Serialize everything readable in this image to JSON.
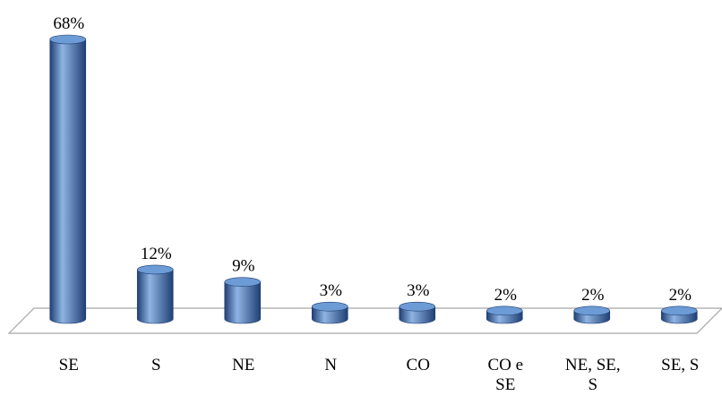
{
  "chart_data": {
    "type": "bar",
    "style": "3d-cylinder",
    "categories": [
      "SE",
      "S",
      "NE",
      "N",
      "CO",
      "CO e SE",
      "NE, SE, S",
      "SE, S"
    ],
    "category_lines": [
      [
        "SE"
      ],
      [
        "S"
      ],
      [
        "NE"
      ],
      [
        "N"
      ],
      [
        "CO"
      ],
      [
        "CO e",
        "SE"
      ],
      [
        "NE, SE,",
        "S"
      ],
      [
        "SE, S"
      ]
    ],
    "values": [
      68,
      12,
      9,
      3,
      3,
      2,
      2,
      2
    ],
    "data_labels": [
      "68%",
      "12%",
      "9%",
      "3%",
      "3%",
      "2%",
      "2%",
      "2%"
    ],
    "title": "",
    "xlabel": "",
    "ylabel": "",
    "ylim": [
      0,
      70
    ],
    "grid": false,
    "legend": "none",
    "colors": {
      "bar": "#4a7bbf",
      "bar_dark": "#1f3f73",
      "bar_light": "#8fb4e3",
      "bar_top": "#6d9bd6",
      "floor_edge": "#a6a6a6"
    }
  }
}
